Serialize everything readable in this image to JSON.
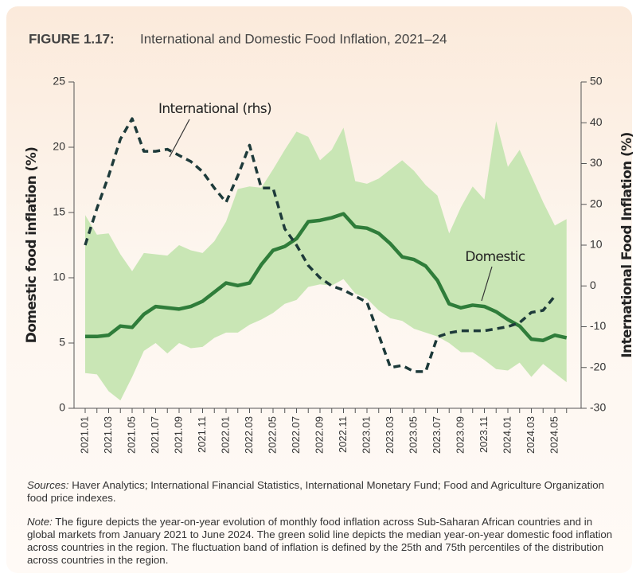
{
  "chart_data": {
    "type": "line",
    "figure_label": "FIGURE 1.17:",
    "title": "International and Domestic Food Inflation, 2021–24",
    "ylabel": "Domestic food inflation (%)",
    "y2label": "International Food Inflation (%)",
    "categories": [
      "2021.01",
      null,
      "2021.03",
      null,
      "2021.05",
      null,
      "2021.07",
      null,
      "2021.09",
      null,
      "2021.11",
      null,
      "2022.01",
      null,
      "2022.03",
      null,
      "2022.05",
      null,
      "2022.07",
      null,
      "2022.09",
      null,
      "2022.11",
      null,
      "2023.01",
      null,
      "2023.03",
      null,
      "2023.05",
      null,
      "2023.07",
      null,
      "2023.09",
      null,
      "2023.11",
      null,
      "2024.01",
      null,
      "2024.03",
      null,
      "2024.05",
      null
    ],
    "band": {
      "color": "#c9e6b5",
      "high": [
        14.8,
        13.3,
        13.4,
        11.8,
        10.5,
        11.9,
        11.8,
        11.7,
        12.5,
        12.1,
        11.9,
        12.8,
        14.3,
        16.8,
        17.0,
        16.9,
        18.3,
        19.8,
        21.2,
        20.8,
        19.0,
        19.8,
        21.5,
        17.4,
        17.2,
        17.6,
        18.3,
        19.0,
        18.2,
        17.1,
        16.3,
        13.4,
        15.4,
        17.0,
        16.0,
        22.0,
        18.5,
        19.8,
        17.8,
        15.8,
        14.0,
        14.5
      ],
      "low": [
        2.7,
        2.6,
        1.3,
        0.6,
        2.4,
        4.4,
        5.0,
        4.2,
        5.0,
        4.6,
        4.7,
        5.4,
        5.8,
        5.8,
        6.4,
        6.8,
        7.3,
        8.0,
        8.3,
        9.3,
        9.5,
        9.4,
        9.9,
        8.8,
        8.4,
        7.5,
        6.9,
        6.7,
        6.1,
        5.8,
        5.5,
        5.0,
        4.3,
        4.3,
        3.7,
        3.0,
        2.9,
        3.5,
        2.4,
        3.4,
        2.7,
        2.0
      ]
    },
    "series": [
      {
        "name": "Domestic",
        "color": "#2f7d3a",
        "axis": "y",
        "values": [
          5.5,
          5.5,
          5.6,
          6.3,
          6.2,
          7.2,
          7.8,
          7.7,
          7.6,
          7.8,
          8.2,
          8.9,
          9.6,
          9.4,
          9.6,
          11.0,
          12.1,
          12.4,
          13.0,
          14.3,
          14.4,
          14.6,
          14.9,
          13.9,
          13.8,
          13.4,
          12.6,
          11.6,
          11.4,
          10.9,
          9.8,
          8.0,
          7.7,
          7.9,
          7.8,
          7.4,
          6.8,
          6.3,
          5.3,
          5.2,
          5.6,
          5.4
        ]
      },
      {
        "name": "International (rhs)",
        "color": "#1d3a3a",
        "axis": "y2",
        "dashed": true,
        "values": [
          10,
          19,
          27,
          36,
          41,
          33,
          33,
          33.5,
          32,
          30.5,
          28,
          24,
          20.5,
          27,
          34.5,
          24,
          24,
          14,
          10,
          5,
          2,
          0,
          -1,
          -2.5,
          -4,
          -12,
          -20,
          -19.5,
          -21,
          -21,
          -12.5,
          -11.5,
          -11,
          -11,
          -11,
          -10.5,
          -10,
          -9,
          -6.5,
          -6,
          -2.5,
          null
        ]
      }
    ],
    "ylim": [
      0,
      25
    ],
    "yticks": [
      0,
      5,
      10,
      15,
      20,
      25
    ],
    "y2lim": [
      -30,
      50
    ],
    "y2ticks": [
      -30,
      -20,
      -10,
      0,
      10,
      20,
      30,
      40,
      50
    ],
    "sources_label": "Sources:",
    "sources": "Haver Analytics; International Financial Statistics, International Monetary Fund; Food and Agriculture Organization food price indexes.",
    "note_label": "Note:",
    "note": "The figure depicts the year-on-year evolution of monthly food inflation across Sub-Saharan African countries and in global markets from January 2021 to June 2024. The green solid line depicts the median year-on-year domestic food inflation across countries in the region. The fluctuation band of inflation is defined by the 25th and 75th percentiles of the distribution across countries in the region."
  }
}
